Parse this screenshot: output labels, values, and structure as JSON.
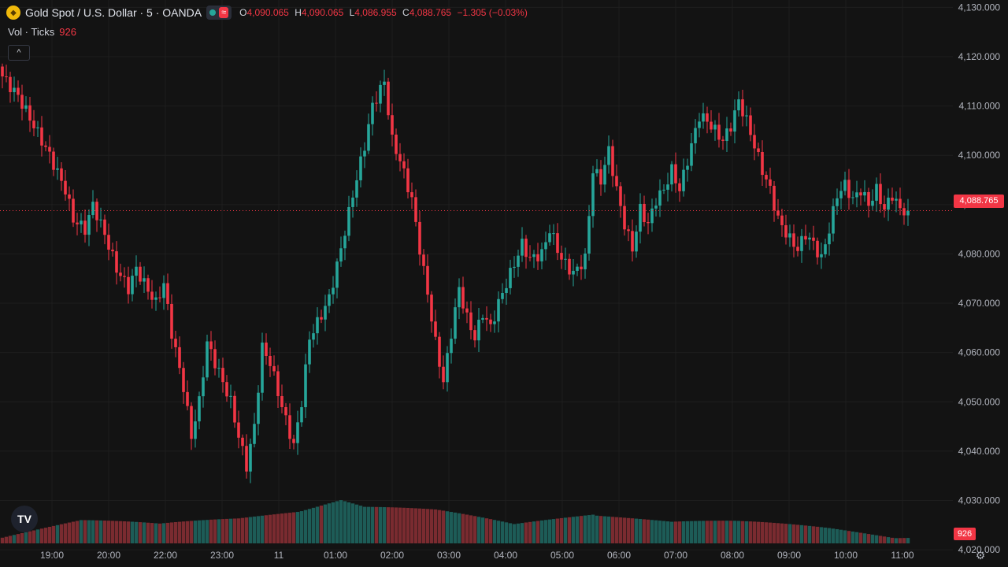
{
  "legend": {
    "symbol_icon": "gold-coin-icon",
    "title": "Gold Spot / U.S. Dollar · 5 · OANDA",
    "wave_icon": "≈",
    "open_label": "O",
    "open_value": "4,090.065",
    "high_label": "H",
    "high_value": "4,090.065",
    "low_label": "L",
    "low_value": "4,086.955",
    "close_label": "C",
    "close_value": "4,088.765",
    "change": "−1.305 (−0.03%)"
  },
  "volume_legend": {
    "label": "Vol · Ticks",
    "value": "926"
  },
  "collapse_icon": "^",
  "logo_text": "TV",
  "settings_icon": "⚙",
  "colors": {
    "up": "#26a69a",
    "down": "#f23645",
    "up_vol": "#1d5c57",
    "down_vol": "#7a2b30",
    "grid": "#1e1e1e",
    "background": "#131313"
  },
  "chart_data": {
    "type": "candlestick",
    "symbol": "Gold Spot / U.S. Dollar",
    "interval": "5",
    "source": "OANDA",
    "last_price": "4,088.765",
    "last_volume": "926",
    "y_ticks": [
      "4,130.000",
      "4,120.000",
      "4,110.000",
      "4,100.000",
      "4,090.000",
      "4,080.000",
      "4,070.000",
      "4,060.000",
      "4,050.000",
      "4,040.000",
      "4,030.000",
      "4,020.000"
    ],
    "y_range": [
      4016.5,
      4131.5
    ],
    "x_ticks": [
      "19:00",
      "20:00",
      "22:00",
      "23:00",
      "11",
      "01:00",
      "02:00",
      "03:00",
      "04:00",
      "05:00",
      "06:00",
      "07:00",
      "08:00",
      "09:00",
      "10:00",
      "11:00"
    ],
    "close_keypoints": [
      [
        0,
        4116
      ],
      [
        4,
        4112
      ],
      [
        8,
        4106
      ],
      [
        12,
        4100
      ],
      [
        16,
        4093
      ],
      [
        18,
        4087
      ],
      [
        21,
        4085
      ],
      [
        23,
        4090
      ],
      [
        26,
        4084
      ],
      [
        29,
        4077
      ],
      [
        32,
        4073
      ],
      [
        34,
        4077
      ],
      [
        36,
        4074
      ],
      [
        39,
        4070
      ],
      [
        41,
        4074
      ],
      [
        43,
        4064
      ],
      [
        46,
        4053
      ],
      [
        48,
        4043
      ],
      [
        50,
        4050
      ],
      [
        52,
        4062
      ],
      [
        55,
        4056
      ],
      [
        58,
        4050
      ],
      [
        60,
        4043
      ],
      [
        62,
        4037
      ],
      [
        64,
        4045
      ],
      [
        66,
        4061
      ],
      [
        68,
        4058
      ],
      [
        71,
        4049
      ],
      [
        74,
        4041
      ],
      [
        76,
        4050
      ],
      [
        78,
        4063
      ],
      [
        80,
        4066
      ],
      [
        83,
        4071
      ],
      [
        86,
        4081
      ],
      [
        89,
        4092
      ],
      [
        92,
        4102
      ],
      [
        94,
        4110
      ],
      [
        97,
        4115
      ],
      [
        99,
        4103
      ],
      [
        101,
        4099
      ],
      [
        104,
        4091
      ],
      [
        106,
        4081
      ],
      [
        108,
        4072
      ],
      [
        110,
        4062
      ],
      [
        112,
        4054
      ],
      [
        114,
        4064
      ],
      [
        116,
        4073
      ],
      [
        118,
        4067
      ],
      [
        120,
        4063
      ],
      [
        122,
        4068
      ],
      [
        124,
        4065
      ],
      [
        126,
        4070
      ],
      [
        128,
        4074
      ],
      [
        130,
        4078
      ],
      [
        132,
        4082
      ],
      [
        134,
        4079
      ],
      [
        137,
        4080
      ],
      [
        139,
        4085
      ],
      [
        142,
        4079
      ],
      [
        145,
        4076
      ],
      [
        148,
        4079
      ],
      [
        150,
        4097
      ],
      [
        152,
        4095
      ],
      [
        154,
        4101
      ],
      [
        156,
        4093
      ],
      [
        158,
        4086
      ],
      [
        160,
        4081
      ],
      [
        162,
        4089
      ],
      [
        164,
        4086
      ],
      [
        166,
        4091
      ],
      [
        168,
        4093
      ],
      [
        170,
        4097
      ],
      [
        172,
        4093
      ],
      [
        175,
        4102
      ],
      [
        177,
        4108
      ],
      [
        179,
        4107
      ],
      [
        181,
        4105
      ],
      [
        183,
        4103
      ],
      [
        185,
        4106
      ],
      [
        187,
        4111
      ],
      [
        189,
        4107
      ],
      [
        191,
        4102
      ],
      [
        193,
        4097
      ],
      [
        195,
        4093
      ],
      [
        197,
        4087
      ],
      [
        200,
        4083
      ],
      [
        202,
        4081
      ],
      [
        204,
        4084
      ],
      [
        206,
        4082
      ],
      [
        208,
        4079
      ],
      [
        210,
        4085
      ],
      [
        212,
        4092
      ],
      [
        214,
        4094
      ],
      [
        216,
        4091
      ],
      [
        218,
        4093
      ],
      [
        220,
        4090
      ],
      [
        222,
        4093
      ],
      [
        224,
        4089
      ],
      [
        226,
        4092
      ],
      [
        228,
        4089
      ],
      [
        230,
        4088.765
      ]
    ],
    "high_keypoints": [
      [
        0,
        4121
      ],
      [
        95,
        4118
      ],
      [
        109,
        4077
      ],
      [
        137,
        4087
      ],
      [
        154,
        4106
      ],
      [
        186,
        4112
      ],
      [
        217,
        4096
      ]
    ],
    "low_keypoints": [
      [
        62,
        4035
      ],
      [
        112,
        4052
      ]
    ],
    "volume_keypoints": [
      [
        0,
        4
      ],
      [
        20,
        12
      ],
      [
        40,
        8
      ],
      [
        60,
        14
      ],
      [
        86,
        28
      ],
      [
        92,
        22
      ],
      [
        110,
        18
      ],
      [
        130,
        9
      ],
      [
        150,
        20
      ],
      [
        170,
        11
      ],
      [
        186,
        10
      ],
      [
        210,
        7
      ],
      [
        230,
        3
      ]
    ],
    "volume_ylim": [
      0,
      100
    ]
  }
}
